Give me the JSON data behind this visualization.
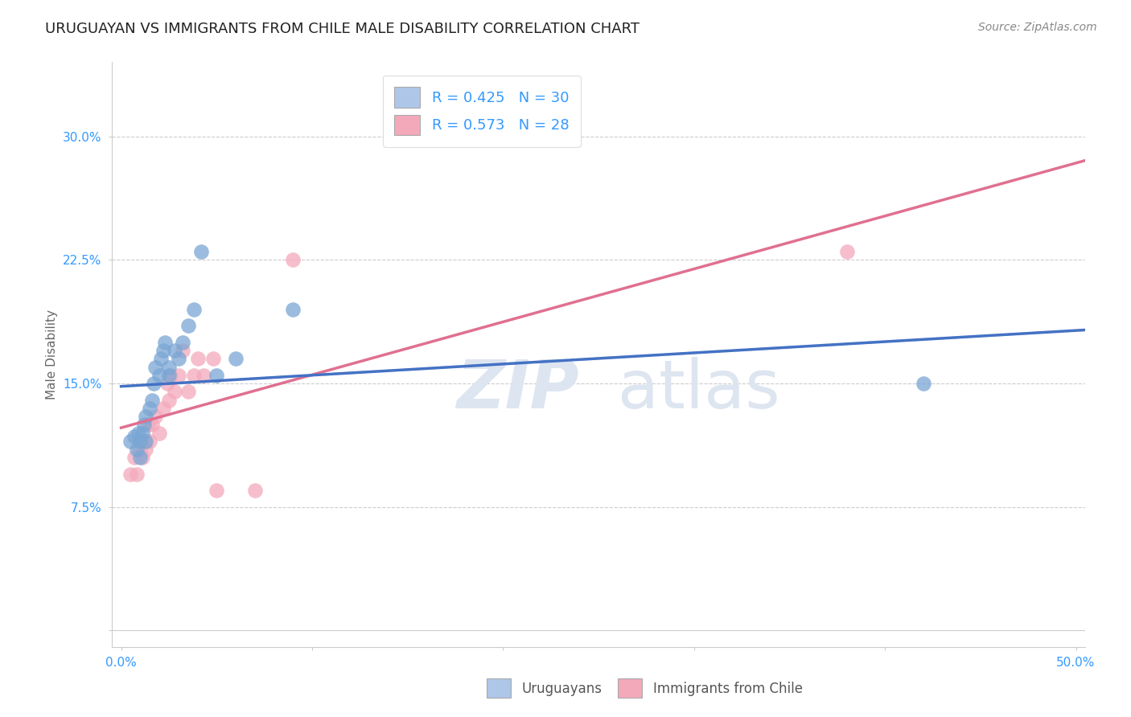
{
  "title": "URUGUAYAN VS IMMIGRANTS FROM CHILE MALE DISABILITY CORRELATION CHART",
  "source": "Source: ZipAtlas.com",
  "ylabel": "Male Disability",
  "xlabel": "",
  "xlim": [
    -0.005,
    0.505
  ],
  "ylim": [
    -0.01,
    0.345
  ],
  "xticks": [
    0.0,
    0.1,
    0.2,
    0.3,
    0.4,
    0.5
  ],
  "xticklabels": [
    "0.0%",
    "",
    "",
    "",
    "",
    "50.0%"
  ],
  "yticks": [
    0.0,
    0.075,
    0.15,
    0.225,
    0.3
  ],
  "yticklabels": [
    "",
    "7.5%",
    "15.0%",
    "22.5%",
    "30.0%"
  ],
  "grid_color": "#cccccc",
  "background_color": "#ffffff",
  "uruguayans": {
    "x": [
      0.005,
      0.007,
      0.008,
      0.009,
      0.01,
      0.01,
      0.011,
      0.012,
      0.013,
      0.013,
      0.015,
      0.016,
      0.017,
      0.018,
      0.02,
      0.021,
      0.022,
      0.023,
      0.025,
      0.025,
      0.028,
      0.03,
      0.032,
      0.035,
      0.038,
      0.042,
      0.05,
      0.06,
      0.09,
      0.42
    ],
    "y": [
      0.115,
      0.118,
      0.11,
      0.12,
      0.105,
      0.115,
      0.12,
      0.125,
      0.13,
      0.115,
      0.135,
      0.14,
      0.15,
      0.16,
      0.155,
      0.165,
      0.17,
      0.175,
      0.155,
      0.16,
      0.17,
      0.165,
      0.175,
      0.185,
      0.195,
      0.23,
      0.155,
      0.165,
      0.195,
      0.15
    ],
    "color": "#7aa6d4",
    "R": 0.425,
    "N": 30
  },
  "chile": {
    "x": [
      0.005,
      0.007,
      0.008,
      0.01,
      0.011,
      0.012,
      0.013,
      0.014,
      0.015,
      0.016,
      0.018,
      0.02,
      0.022,
      0.024,
      0.025,
      0.026,
      0.028,
      0.03,
      0.032,
      0.035,
      0.038,
      0.04,
      0.043,
      0.048,
      0.05,
      0.07,
      0.09,
      0.38
    ],
    "y": [
      0.095,
      0.105,
      0.095,
      0.11,
      0.105,
      0.115,
      0.11,
      0.125,
      0.115,
      0.125,
      0.13,
      0.12,
      0.135,
      0.15,
      0.14,
      0.155,
      0.145,
      0.155,
      0.17,
      0.145,
      0.155,
      0.165,
      0.155,
      0.165,
      0.085,
      0.085,
      0.225,
      0.23
    ],
    "color": "#f4a9bb",
    "R": 0.573,
    "N": 28
  },
  "legend_box_color_uruguayans": "#aec6e8",
  "legend_box_color_chile": "#f4a9bb",
  "legend_text_color": "#3399ff",
  "trendline_uruguayans_color": "#4472c4",
  "trendline_chile_color": "#e07090",
  "trendline_gray_color": "#b0b8cc",
  "watermark_color": "#dde5f0",
  "title_fontsize": 13,
  "axis_label_fontsize": 11,
  "tick_fontsize": 11,
  "legend_fontsize": 13,
  "source_fontsize": 10
}
